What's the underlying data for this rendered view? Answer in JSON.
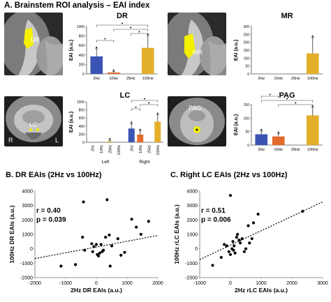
{
  "panel_a": {
    "title": "A. Brainstem ROI analysis – EAI index",
    "colors": {
      "2Hz": "#3a54b4",
      "10Hz": "#e46a2c",
      "25Hz": "#cfb51a",
      "100Hz": "#e3ae2a",
      "roi": "#f4f000"
    },
    "images": [
      {
        "roi_label": "DR",
        "side_left": "",
        "side_right": ""
      },
      {
        "roi_label": "MR",
        "side_left": "",
        "side_right": ""
      },
      {
        "roi_label": "LC",
        "side_left": "R",
        "side_right": "L"
      },
      {
        "roi_label": "PAG",
        "side_left": "",
        "side_right": ""
      }
    ]
  },
  "panel_b": {
    "title": "B. DR EAIs (2Hz vs 100Hz)",
    "stat_r": "r = 0.40",
    "stat_p": "p = 0.039"
  },
  "panel_c": {
    "title": "C. Right LC EAIs (2Hz vs 100Hz)",
    "stat_r": "r = 0.51",
    "stat_p": "p = 0.006"
  },
  "chart_data": [
    {
      "id": "DR",
      "type": "bar",
      "title": "DR",
      "ylabel": "EAI (a.u.)",
      "categories": [
        "2Hz",
        "10Hz",
        "25Hz",
        "100Hz"
      ],
      "values": [
        370,
        30,
        0,
        550
      ],
      "errors": [
        160,
        20,
        0,
        260
      ],
      "ylim": [
        0,
        1000
      ],
      "yticks": [
        0,
        200,
        400,
        600,
        800,
        1000
      ],
      "group_labels": []
    },
    {
      "id": "MR",
      "type": "bar",
      "title": "MR",
      "ylabel": "EAI (a.u.)",
      "categories": [
        "2Hz",
        "10Hz",
        "25Hz",
        "100Hz"
      ],
      "values": [
        0,
        0,
        0,
        130
      ],
      "errors": [
        0,
        0,
        0,
        100
      ],
      "ylim": [
        0,
        300
      ],
      "yticks": [
        0,
        50,
        100,
        150,
        200,
        250,
        300
      ],
      "group_labels": []
    },
    {
      "id": "LC",
      "type": "bar",
      "title": "LC",
      "ylabel": "EAI (a.u.)",
      "categories": [
        "2Hz",
        "10Hz",
        "25Hz",
        "100Hz",
        "2Hz",
        "10Hz",
        "25Hz",
        "100Hz"
      ],
      "values": [
        0,
        0,
        20,
        0,
        340,
        190,
        0,
        510
      ],
      "errors": [
        0,
        0,
        30,
        0,
        120,
        90,
        0,
        170
      ],
      "ylim": [
        0,
        1000
      ],
      "yticks": [
        0,
        200,
        400,
        600,
        800,
        1000
      ],
      "group_labels": [
        "Left",
        "Right"
      ]
    },
    {
      "id": "PAG",
      "type": "bar",
      "title": "PAG",
      "ylabel": "EAI (a.u.)",
      "categories": [
        "2Hz",
        "10Hz",
        "25Hz",
        "100Hz"
      ],
      "values": [
        40,
        32,
        0,
        110
      ],
      "errors": [
        12,
        10,
        0,
        30
      ],
      "ylim": [
        0,
        150
      ],
      "yticks": [
        0,
        50,
        100,
        150
      ],
      "group_labels": []
    },
    {
      "id": "B",
      "type": "scatter",
      "title": "B. DR EAIs (2Hz vs 100Hz)",
      "xlabel": "2Hz DR EAIs (a.u.)",
      "ylabel": "100Hz DR EAIs (a.u.)",
      "xlim": [
        -2000,
        2000
      ],
      "ylim": [
        -2000,
        4000
      ],
      "xticks": [
        -2000,
        -1000,
        0,
        1000,
        2000
      ],
      "yticks": [
        -2000,
        -1000,
        0,
        1000,
        2000,
        3000,
        4000
      ],
      "trendline": {
        "slope": 0.4,
        "intercept": 120
      },
      "points": [
        [
          -1150,
          -1200
        ],
        [
          -420,
          3250
        ],
        [
          -680,
          -1100
        ],
        [
          -450,
          800
        ],
        [
          -380,
          -100
        ],
        [
          -150,
          350
        ],
        [
          -120,
          -200
        ],
        [
          -80,
          150
        ],
        [
          0,
          300
        ],
        [
          30,
          -400
        ],
        [
          70,
          -500
        ],
        [
          110,
          -300
        ],
        [
          150,
          300
        ],
        [
          190,
          -200
        ],
        [
          230,
          -100
        ],
        [
          300,
          800
        ],
        [
          350,
          3400
        ],
        [
          420,
          950
        ],
        [
          450,
          -1200
        ],
        [
          500,
          200
        ],
        [
          700,
          700
        ],
        [
          800,
          -450
        ],
        [
          1150,
          2050
        ],
        [
          1300,
          1500
        ],
        [
          1450,
          1000
        ],
        [
          1700,
          1900
        ],
        [
          920,
          -250
        ]
      ]
    },
    {
      "id": "C",
      "type": "scatter",
      "title": "C. Right LC EAIs (2Hz vs 100Hz)",
      "xlabel": "2Hz rLC EAIs (a.u.)",
      "ylabel": "100Hz rLC EAIs (a.u.)",
      "xlim": [
        -1000,
        3000
      ],
      "ylim": [
        -2000,
        4000
      ],
      "xticks": [
        -1000,
        0,
        1000,
        2000,
        3000
      ],
      "yticks": [
        -2000,
        -1000,
        0,
        1000,
        2000,
        3000,
        4000
      ],
      "trendline": {
        "slope": 1.0,
        "intercept": 250
      },
      "points": [
        [
          -580,
          -1150
        ],
        [
          -300,
          -600
        ],
        [
          -200,
          300
        ],
        [
          -120,
          200
        ],
        [
          -50,
          -200
        ],
        [
          0,
          3700
        ],
        [
          0,
          -400
        ],
        [
          50,
          0
        ],
        [
          80,
          500
        ],
        [
          120,
          200
        ],
        [
          150,
          -300
        ],
        [
          200,
          800
        ],
        [
          230,
          1000
        ],
        [
          280,
          600
        ],
        [
          320,
          400
        ],
        [
          380,
          700
        ],
        [
          450,
          -200
        ],
        [
          500,
          0
        ],
        [
          580,
          1600
        ],
        [
          620,
          400
        ],
        [
          700,
          700
        ],
        [
          750,
          1800
        ],
        [
          900,
          2400
        ],
        [
          2350,
          2600
        ],
        [
          100,
          -100
        ]
      ]
    }
  ]
}
